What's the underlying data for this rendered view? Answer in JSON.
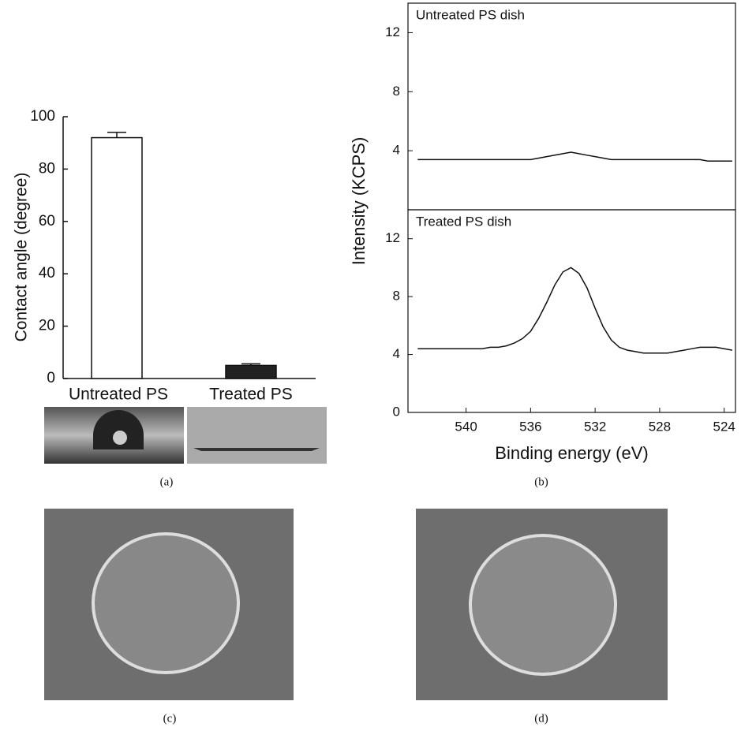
{
  "chart_data": [
    {
      "type": "bar",
      "categories": [
        "Untreated PS",
        "Treated PS"
      ],
      "values": [
        92,
        5
      ],
      "errors": [
        2,
        0.6
      ],
      "colors": [
        "#ffffff",
        "#222222"
      ],
      "ylabel": "Contact angle (degree)",
      "ylim": [
        0,
        100
      ],
      "yticks": [
        0,
        20,
        40,
        60,
        80,
        100
      ],
      "caption": "(a)"
    },
    {
      "type": "line",
      "title": "Untreated PS dish",
      "ylabel": "Intensity (KCPS)",
      "x": [
        543,
        542.5,
        542,
        541.5,
        541,
        540.5,
        540,
        539.5,
        539,
        538.5,
        538,
        537.5,
        537,
        536.5,
        536,
        535.5,
        535,
        534.5,
        534,
        533.5,
        533,
        532.5,
        532,
        531.5,
        531,
        530.5,
        530,
        529.5,
        529,
        528.5,
        528,
        527.5,
        527,
        526.5,
        526,
        525.5,
        525,
        524.5,
        524,
        523.5
      ],
      "series": [
        {
          "color": "#111111",
          "values": [
            3.4,
            3.4,
            3.4,
            3.4,
            3.4,
            3.4,
            3.4,
            3.4,
            3.4,
            3.4,
            3.4,
            3.4,
            3.4,
            3.4,
            3.4,
            3.5,
            3.6,
            3.7,
            3.8,
            3.9,
            3.8,
            3.7,
            3.6,
            3.5,
            3.4,
            3.4,
            3.4,
            3.4,
            3.4,
            3.4,
            3.4,
            3.4,
            3.4,
            3.4,
            3.4,
            3.4,
            3.3,
            3.3,
            3.3,
            3.3
          ]
        }
      ],
      "xlim": [
        543.6,
        523.3
      ],
      "ylim": [
        0,
        14
      ],
      "yticks": [
        4,
        8,
        12
      ]
    },
    {
      "type": "line",
      "title": "Treated PS dish",
      "xlabel": "Binding energy (eV)",
      "caption": "(b)",
      "x": [
        543,
        542.5,
        542,
        541.5,
        541,
        540.5,
        540,
        539.5,
        539,
        538.5,
        538,
        537.5,
        537,
        536.5,
        536,
        535.5,
        535,
        534.5,
        534,
        533.5,
        533,
        532.5,
        532,
        531.5,
        531,
        530.5,
        530,
        529.5,
        529,
        528.5,
        528,
        527.5,
        527,
        526.5,
        526,
        525.5,
        525,
        524.5,
        524,
        523.5
      ],
      "series": [
        {
          "color": "#111111",
          "values": [
            4.4,
            4.4,
            4.4,
            4.4,
            4.4,
            4.4,
            4.4,
            4.4,
            4.4,
            4.5,
            4.5,
            4.6,
            4.8,
            5.1,
            5.6,
            6.5,
            7.6,
            8.8,
            9.7,
            10.0,
            9.6,
            8.6,
            7.2,
            5.9,
            5.0,
            4.5,
            4.3,
            4.2,
            4.1,
            4.1,
            4.1,
            4.1,
            4.2,
            4.3,
            4.4,
            4.5,
            4.5,
            4.5,
            4.4,
            4.3
          ]
        }
      ],
      "xlim": [
        543.6,
        523.3
      ],
      "ylim": [
        0,
        14
      ],
      "yticks": [
        0,
        4,
        8,
        12
      ],
      "xticks": [
        540,
        536,
        532,
        528,
        524
      ]
    }
  ],
  "photo_captions": [
    "(c)",
    "(d)"
  ]
}
